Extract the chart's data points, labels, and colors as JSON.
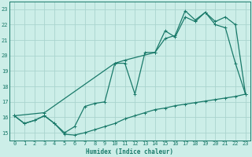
{
  "title": "",
  "xlabel": "Humidex (Indice chaleur)",
  "ylabel": "",
  "bg_color": "#cceee8",
  "grid_color": "#aad4ce",
  "line_color": "#1a7a6a",
  "xlim": [
    -0.5,
    23.5
  ],
  "ylim": [
    14.5,
    23.5
  ],
  "xticks": [
    0,
    1,
    2,
    3,
    4,
    5,
    6,
    7,
    8,
    9,
    10,
    11,
    12,
    13,
    14,
    15,
    16,
    17,
    18,
    19,
    20,
    21,
    22,
    23
  ],
  "yticks": [
    15,
    16,
    17,
    18,
    19,
    20,
    21,
    22,
    23
  ],
  "line1_x": [
    0,
    1,
    2,
    3,
    4,
    5,
    6,
    7,
    8,
    9,
    10,
    11,
    12,
    13,
    14,
    15,
    16,
    17,
    18,
    19,
    20,
    21,
    22,
    23
  ],
  "line1_y": [
    16.1,
    15.6,
    15.8,
    16.1,
    15.6,
    14.9,
    14.85,
    15.0,
    15.2,
    15.4,
    15.6,
    15.9,
    16.1,
    16.3,
    16.5,
    16.6,
    16.75,
    16.85,
    16.95,
    17.05,
    17.15,
    17.25,
    17.35,
    17.5
  ],
  "line2_x": [
    0,
    1,
    2,
    3,
    4,
    5,
    6,
    7,
    8,
    9,
    10,
    11,
    12,
    13,
    14,
    15,
    16,
    17,
    18,
    19,
    20,
    21,
    22,
    23
  ],
  "line2_y": [
    16.1,
    15.6,
    15.8,
    16.1,
    15.6,
    15.0,
    15.4,
    16.7,
    16.9,
    17.0,
    19.5,
    19.5,
    17.5,
    20.2,
    20.2,
    21.6,
    21.2,
    22.5,
    22.2,
    22.8,
    22.0,
    21.8,
    19.5,
    17.5
  ],
  "line3_x": [
    0,
    3,
    10,
    11,
    14,
    15,
    16,
    17,
    18,
    19,
    20,
    21,
    22,
    23
  ],
  "line3_y": [
    16.1,
    16.3,
    19.5,
    19.7,
    20.2,
    21.1,
    21.3,
    22.9,
    22.3,
    22.8,
    22.2,
    22.5,
    22.0,
    17.5
  ]
}
